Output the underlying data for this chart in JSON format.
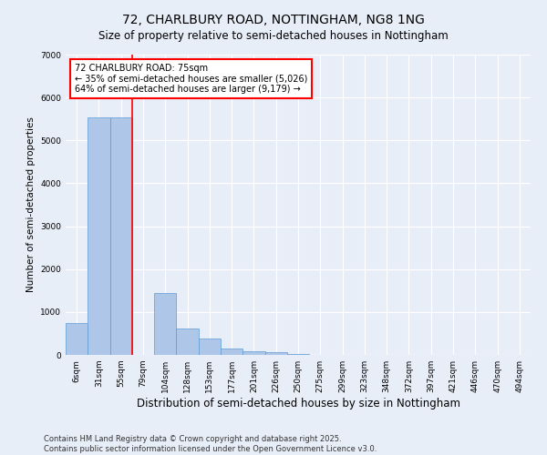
{
  "title": "72, CHARLBURY ROAD, NOTTINGHAM, NG8 1NG",
  "subtitle": "Size of property relative to semi-detached houses in Nottingham",
  "xlabel": "Distribution of semi-detached houses by size in Nottingham",
  "ylabel": "Number of semi-detached properties",
  "categories": [
    "6sqm",
    "31sqm",
    "55sqm",
    "79sqm",
    "104sqm",
    "128sqm",
    "153sqm",
    "177sqm",
    "201sqm",
    "226sqm",
    "250sqm",
    "275sqm",
    "299sqm",
    "323sqm",
    "348sqm",
    "372sqm",
    "397sqm",
    "421sqm",
    "446sqm",
    "470sqm",
    "494sqm"
  ],
  "values": [
    750,
    5530,
    5530,
    0,
    1450,
    620,
    380,
    140,
    90,
    60,
    20,
    0,
    0,
    0,
    0,
    0,
    0,
    0,
    0,
    0,
    0
  ],
  "bar_color": "#aec6e8",
  "bar_edge_color": "#5b9bd5",
  "vline_index": 2.5,
  "vline_color": "red",
  "annotation_text": "72 CHARLBURY ROAD: 75sqm\n← 35% of semi-detached houses are smaller (5,026)\n64% of semi-detached houses are larger (9,179) →",
  "annotation_box_color": "white",
  "annotation_box_edge_color": "red",
  "ylim": [
    0,
    7000
  ],
  "yticks": [
    0,
    1000,
    2000,
    3000,
    4000,
    5000,
    6000,
    7000
  ],
  "footer": "Contains HM Land Registry data © Crown copyright and database right 2025.\nContains public sector information licensed under the Open Government Licence v3.0.",
  "background_color": "#e8eef8",
  "grid_color": "#ffffff",
  "title_fontsize": 10,
  "subtitle_fontsize": 8.5,
  "xlabel_fontsize": 8.5,
  "ylabel_fontsize": 7.5,
  "tick_fontsize": 6.5,
  "footer_fontsize": 6,
  "annotation_fontsize": 7
}
